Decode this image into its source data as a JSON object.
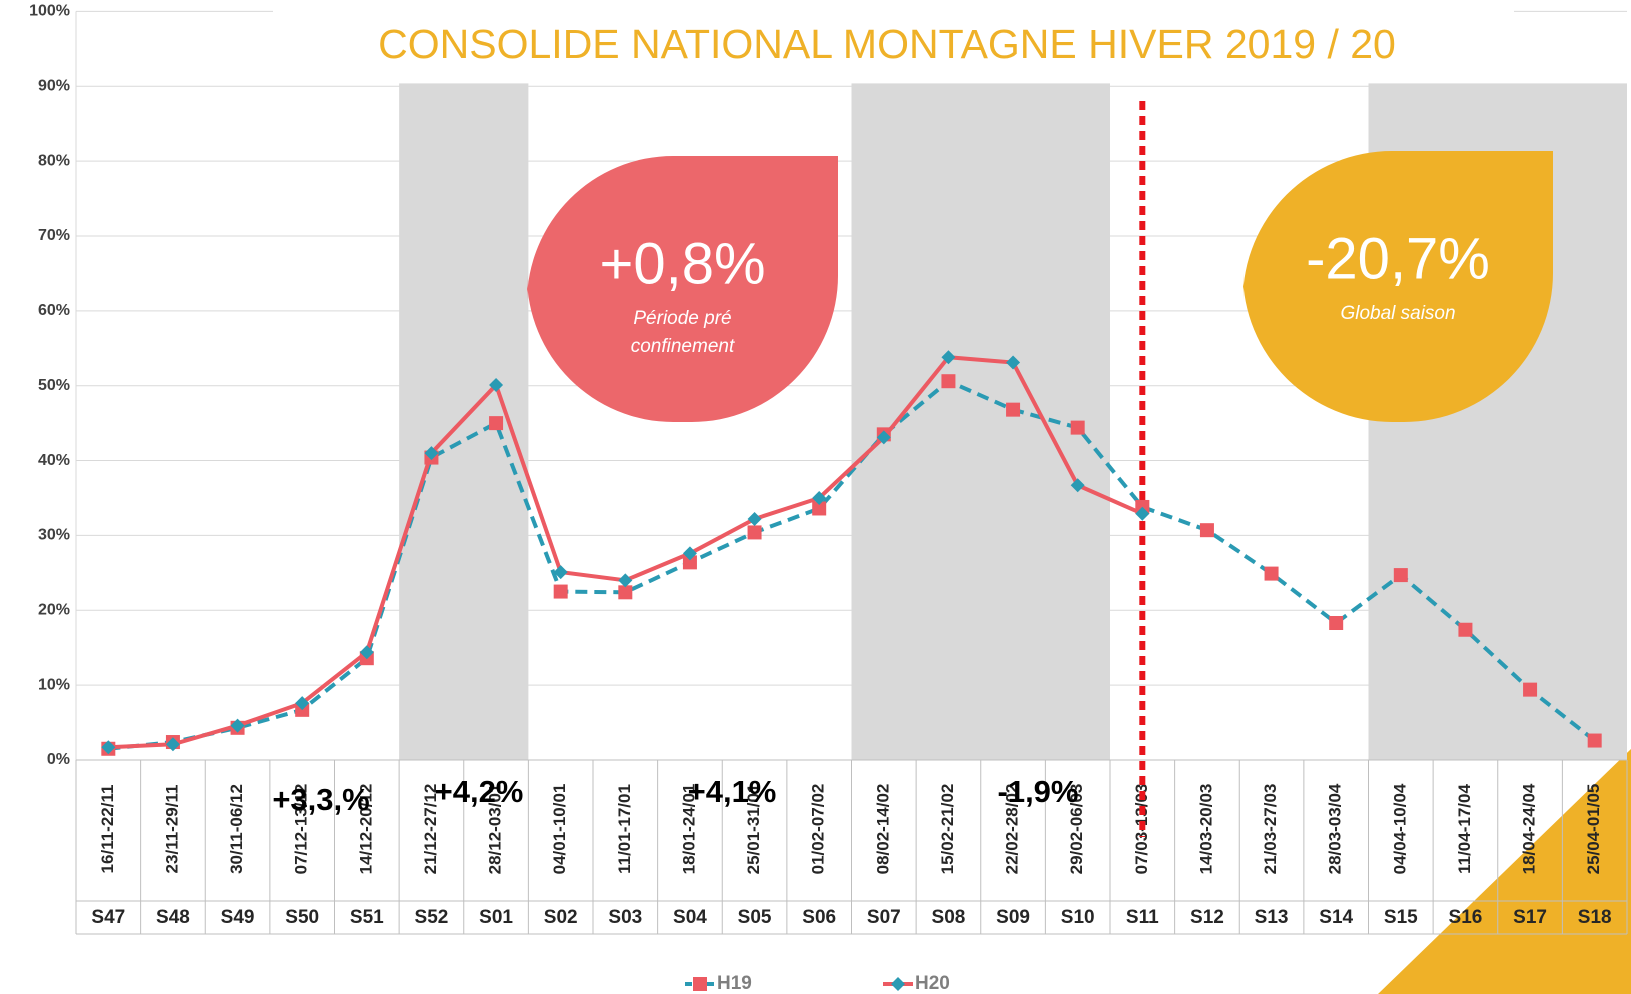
{
  "chart_data": {
    "type": "line",
    "title": "CONSOLIDE NATIONAL MONTAGNE HIVER 2019 / 20",
    "categories": [
      "16/11-22/11",
      "23/11-29/11",
      "30/11-06/12",
      "07/12-13/12",
      "14/12-20/12",
      "21/12-27/12",
      "28/12-03/01",
      "04/01-10/01",
      "11/01-17/01",
      "18/01-24/01",
      "25/01-31/01",
      "01/02-07/02",
      "08/02-14/02",
      "15/02-21/02",
      "22/02-28/02",
      "29/02-06/03",
      "07/03-13/03",
      "14/03-20/03",
      "21/03-27/03",
      "28/03-03/04",
      "04/04-10/04",
      "11/04-17/04",
      "18/04-24/04",
      "25/04-01/05"
    ],
    "weeks": [
      "S47",
      "S48",
      "S49",
      "S50",
      "S51",
      "S52",
      "S01",
      "S02",
      "S03",
      "S04",
      "S05",
      "S06",
      "S07",
      "S08",
      "S09",
      "S10",
      "S11",
      "S12",
      "S13",
      "S14",
      "S15",
      "S16",
      "S17",
      "S18"
    ],
    "series": [
      {
        "name": "H19",
        "color": "#2a9ab3",
        "marker_color": "#ec5a62",
        "marker": "square",
        "dashed": true,
        "values": [
          1.5,
          2.4,
          4.3,
          6.7,
          13.6,
          40.4,
          45.0,
          22.5,
          22.4,
          26.4,
          30.4,
          33.6,
          43.5,
          50.6,
          46.8,
          44.4,
          33.8,
          30.7,
          24.9,
          18.3,
          24.7,
          17.4,
          9.4,
          2.6
        ]
      },
      {
        "name": "H20",
        "color": "#ec5a62",
        "marker_color": "#2a9ab3",
        "marker": "diamond",
        "dashed": false,
        "values": [
          1.7,
          2.1,
          4.6,
          7.6,
          14.4,
          41.0,
          50.1,
          25.1,
          24.0,
          27.6,
          32.2,
          35.0,
          43.1,
          53.8,
          53.1,
          36.7,
          32.9,
          null,
          null,
          null,
          null,
          null,
          null,
          null
        ]
      }
    ],
    "ylim": [
      0,
      100
    ],
    "yticks": [
      {
        "value": 0,
        "label": "0%"
      },
      {
        "value": 10,
        "label": "10%"
      },
      {
        "value": 20,
        "label": "20%"
      },
      {
        "value": 30,
        "label": "30%"
      },
      {
        "value": 40,
        "label": "40%"
      },
      {
        "value": 50,
        "label": "50%"
      },
      {
        "value": 60,
        "label": "60%"
      },
      {
        "value": 70,
        "label": "70%"
      },
      {
        "value": 80,
        "label": "80%"
      },
      {
        "value": 90,
        "label": "90%"
      },
      {
        "value": 100,
        "label": "100%"
      }
    ],
    "grid": true,
    "annotations": [
      "+3,3,%",
      "+4,2%",
      "+4,1%",
      "-1,9%"
    ],
    "callouts": [
      {
        "text": "+0,8%",
        "lines": [
          "Période pré",
          "confinement"
        ],
        "color": "#ec676b"
      },
      {
        "text": "-20,7%",
        "lines": [
          "Global saison"
        ],
        "color": "#efb128"
      }
    ]
  }
}
